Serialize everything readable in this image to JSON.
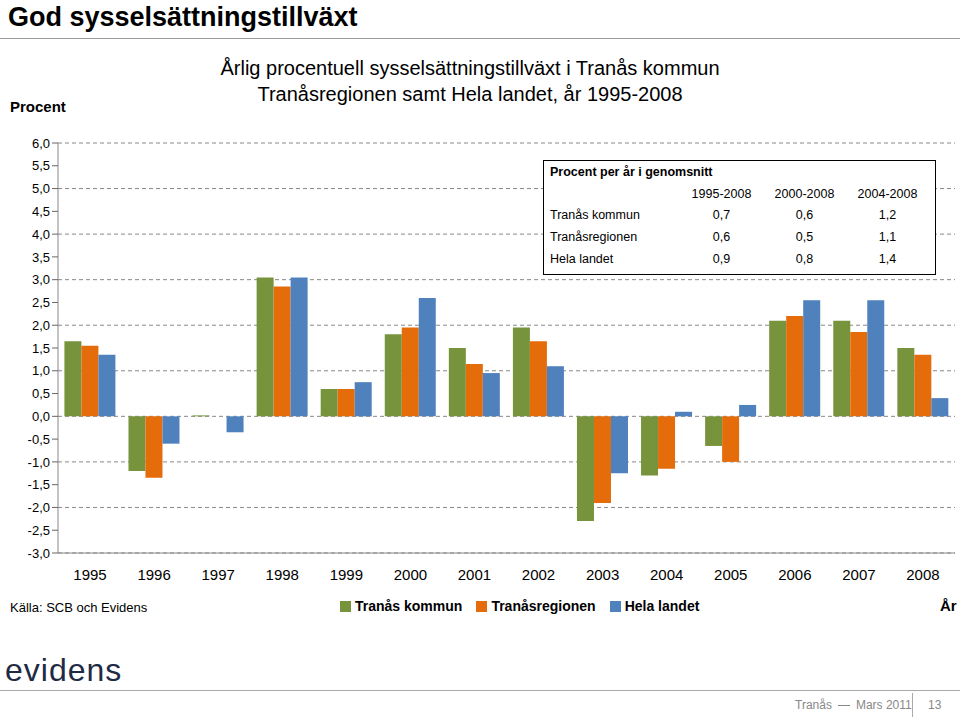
{
  "slide": {
    "heading": "God sysselsättningstillväxt",
    "y_unit": "Procent",
    "x_unit": "År",
    "source": "Källa: SCB och Evidens",
    "logo": "evidens",
    "footer_place": "Tranås",
    "footer_date": "Mars 2011",
    "page": "13"
  },
  "table": {
    "title": "Procent per år i genomsnitt",
    "header": [
      "",
      "1995-2008",
      "2000-2008",
      "2004-2008"
    ],
    "rows": [
      [
        "Tranås kommun",
        "0,7",
        "0,6",
        "1,2"
      ],
      [
        "Tranåsregionen",
        "0,6",
        "0,5",
        "1,1"
      ],
      [
        "Hela landet",
        "0,9",
        "0,8",
        "1,4"
      ]
    ]
  },
  "chart_data": {
    "type": "bar",
    "title": "Årlig procentuell sysselsättningstillväxt i Tranås kommun",
    "subtitle": "Tranåsregionen samt Hela landet, år 1995-2008",
    "categories": [
      "1995",
      "1996",
      "1997",
      "1998",
      "1999",
      "2000",
      "2001",
      "2002",
      "2003",
      "2004",
      "2005",
      "2006",
      "2007",
      "2008"
    ],
    "series": [
      {
        "name": "Tranås kommun",
        "color": "#77933c",
        "values": [
          1.65,
          -1.2,
          0.02,
          3.05,
          0.6,
          1.8,
          1.5,
          1.95,
          -2.3,
          -1.3,
          -0.65,
          2.1,
          2.1,
          1.5
        ]
      },
      {
        "name": "Tranåsregionen",
        "color": "#e46c0a",
        "values": [
          1.55,
          -1.35,
          0.0,
          2.85,
          0.6,
          1.95,
          1.15,
          1.65,
          -1.9,
          -1.15,
          -1.0,
          2.2,
          1.85,
          1.35
        ]
      },
      {
        "name": "Hela landet",
        "color": "#4f81bd",
        "values": [
          1.35,
          -0.6,
          -0.35,
          3.05,
          0.75,
          2.6,
          0.95,
          1.1,
          -1.25,
          0.1,
          0.25,
          2.55,
          2.55,
          0.4
        ]
      }
    ],
    "ylim": [
      -3,
      6
    ],
    "yticks": [
      {
        "value": -3,
        "label": "-3,0"
      },
      {
        "value": -2.5,
        "label": "-2,5"
      },
      {
        "value": -2,
        "label": "-2,0"
      },
      {
        "value": -1.5,
        "label": "-1,5"
      },
      {
        "value": -1,
        "label": "-1,0"
      },
      {
        "value": -0.5,
        "label": "-0,5"
      },
      {
        "value": 0,
        "label": "0,0"
      },
      {
        "value": 0.5,
        "label": "0,5"
      },
      {
        "value": 1,
        "label": "1,0"
      },
      {
        "value": 1.5,
        "label": "1,5"
      },
      {
        "value": 2,
        "label": "2,0"
      },
      {
        "value": 2.5,
        "label": "2,5"
      },
      {
        "value": 3,
        "label": "3,0"
      },
      {
        "value": 3.5,
        "label": "3,5"
      },
      {
        "value": 4,
        "label": "4,0"
      },
      {
        "value": 4.5,
        "label": "4,5"
      },
      {
        "value": 5,
        "label": "5,0"
      },
      {
        "value": 5.5,
        "label": "5,5"
      },
      {
        "value": 6,
        "label": "6,0"
      }
    ],
    "grid": true,
    "legend": "bottom"
  }
}
